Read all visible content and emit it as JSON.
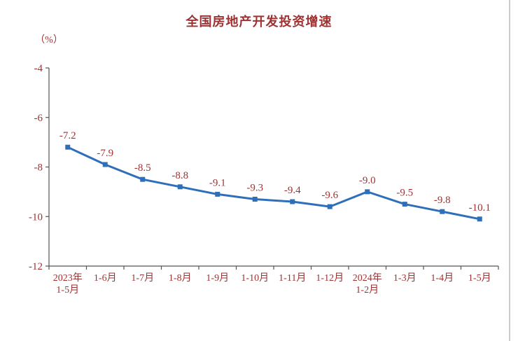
{
  "page": {
    "background_color": "#ffffff",
    "right_edge_color": "#cccccc"
  },
  "chart_data": {
    "type": "line",
    "title": "全国房地产开发投资增速",
    "ylabel": "（%）",
    "xlabel": "",
    "categories": [
      "2023年\n1-5月",
      "1-6月",
      "1-7月",
      "1-8月",
      "1-9月",
      "1-10月",
      "1-11月",
      "1-12月",
      "2024年\n1-2月",
      "1-3月",
      "1-4月",
      "1-5月"
    ],
    "values": [
      -7.2,
      -7.9,
      -8.5,
      -8.8,
      -9.1,
      -9.3,
      -9.4,
      -9.6,
      -9.0,
      -9.5,
      -9.8,
      -10.1
    ],
    "ylim": [
      -12,
      -4
    ],
    "yticks": [
      -4,
      -6,
      -8,
      -10,
      -12
    ],
    "grid": false,
    "legend_position": "none",
    "marker": "square",
    "line_color": "#2f6fba",
    "text_color": "#9e3232",
    "axis_color": "#555555"
  }
}
